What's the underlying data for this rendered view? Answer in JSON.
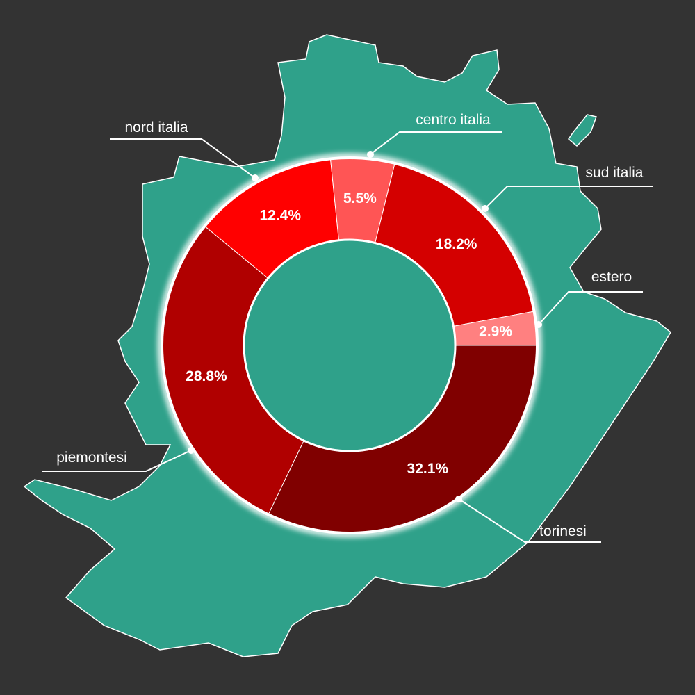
{
  "chart_data": {
    "type": "donut",
    "categories": [
      "torinesi",
      "piemontesi",
      "nord italia",
      "centro italia",
      "sud italia",
      "estero"
    ],
    "values": [
      32.1,
      28.8,
      12.4,
      5.5,
      18.2,
      2.9
    ],
    "value_labels": [
      "32.1%",
      "28.8%",
      "12.4%",
      "5.5%",
      "18.2%",
      "2.9%"
    ],
    "colors": [
      "#800000",
      "#b00000",
      "#ff0000",
      "#ff5555",
      "#d40000",
      "#ff8080"
    ]
  }
}
